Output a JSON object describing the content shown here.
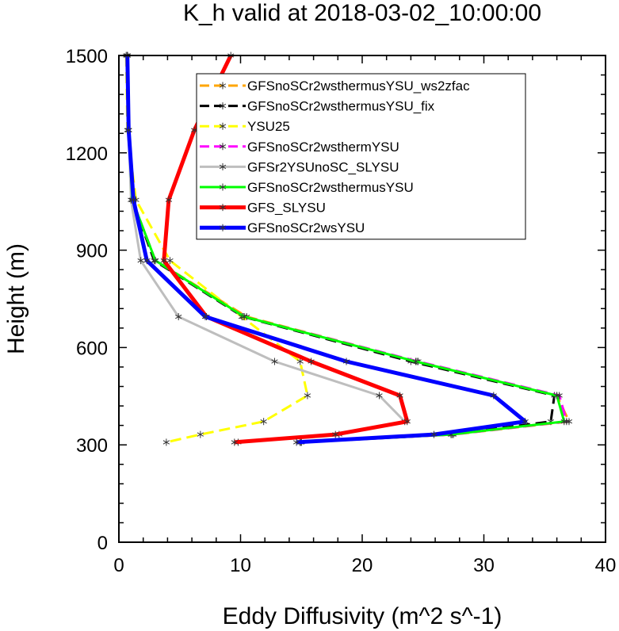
{
  "chart_data": {
    "type": "line",
    "title": "K_h valid at 2018-03-02_10:00:00",
    "xlabel": "Eddy Diffusivity (m^2 s^-1)",
    "ylabel": "Height (m)",
    "xlim": [
      0,
      40
    ],
    "ylim": [
      0,
      1500
    ],
    "xticks": [
      0,
      10,
      20,
      30,
      40
    ],
    "yticks": [
      0,
      300,
      600,
      900,
      1200,
      1500
    ],
    "x_minor_step": 2,
    "y_minor_step": 60,
    "legend_position": "top-right",
    "series": [
      {
        "name": "GFSnoSCr2wsthermusYSU_ws2zfac",
        "color": "#ffa500",
        "dash": "dashed",
        "width": 3,
        "points": [
          [
            0.7,
            1500
          ],
          [
            0.8,
            1270
          ],
          [
            1.1,
            1055
          ],
          [
            3.0,
            868
          ],
          [
            10.5,
            695
          ],
          [
            24.5,
            557
          ],
          [
            36.0,
            452
          ],
          [
            37.0,
            372
          ],
          [
            27.5,
            332
          ],
          [
            15.0,
            308
          ]
        ]
      },
      {
        "name": "GFSnoSCr2wsthermusYSU_fix",
        "color": "#000000",
        "dash": "dashed",
        "width": 3,
        "points": [
          [
            0.7,
            1500
          ],
          [
            0.8,
            1270
          ],
          [
            1.1,
            1055
          ],
          [
            2.9,
            868
          ],
          [
            10.2,
            695
          ],
          [
            24.0,
            557
          ],
          [
            35.8,
            452
          ],
          [
            35.5,
            372
          ],
          [
            27.3,
            332
          ],
          [
            14.9,
            308
          ]
        ]
      },
      {
        "name": "YSU25",
        "color": "#ffff00",
        "dash": "dashed",
        "width": 3,
        "points": [
          [
            0.6,
            1500
          ],
          [
            0.7,
            1270
          ],
          [
            1.4,
            1055
          ],
          [
            4.2,
            868
          ],
          [
            10.1,
            695
          ],
          [
            14.9,
            557
          ],
          [
            15.5,
            452
          ],
          [
            11.9,
            372
          ],
          [
            6.7,
            332
          ],
          [
            3.9,
            308
          ]
        ]
      },
      {
        "name": "GFSnoSCr2wsthermYSU",
        "color": "#ff00ff",
        "dash": "dashed",
        "width": 3,
        "points": [
          [
            0.7,
            1500
          ],
          [
            0.8,
            1270
          ],
          [
            1.1,
            1055
          ],
          [
            3.0,
            868
          ],
          [
            10.3,
            695
          ],
          [
            24.6,
            557
          ],
          [
            36.2,
            452
          ],
          [
            36.8,
            372
          ],
          [
            27.4,
            332
          ],
          [
            15.0,
            308
          ]
        ]
      },
      {
        "name": "GFSr2YSUnoSC_SLYSU",
        "color": "#bebebe",
        "dash": "solid",
        "width": 3,
        "points": [
          [
            0.7,
            1500
          ],
          [
            0.8,
            1270
          ],
          [
            1.0,
            1055
          ],
          [
            1.8,
            868
          ],
          [
            4.9,
            695
          ],
          [
            12.8,
            557
          ],
          [
            21.4,
            452
          ],
          [
            23.5,
            372
          ],
          [
            18.1,
            332
          ],
          [
            9.8,
            308
          ]
        ]
      },
      {
        "name": "GFSnoSCr2wsthermusYSU",
        "color": "#00ff00",
        "dash": "solid",
        "width": 3,
        "points": [
          [
            0.7,
            1500
          ],
          [
            0.8,
            1270
          ],
          [
            1.1,
            1055
          ],
          [
            3.0,
            868
          ],
          [
            10.3,
            695
          ],
          [
            24.4,
            557
          ],
          [
            36.0,
            452
          ],
          [
            36.6,
            372
          ],
          [
            27.3,
            332
          ],
          [
            14.9,
            308
          ]
        ]
      },
      {
        "name": "GFS_SLYSU",
        "color": "#ff0000",
        "dash": "solid",
        "width": 5,
        "points": [
          [
            9.2,
            1500
          ],
          [
            6.2,
            1270
          ],
          [
            4.1,
            1055
          ],
          [
            3.7,
            868
          ],
          [
            7.2,
            695
          ],
          [
            15.8,
            557
          ],
          [
            23.1,
            452
          ],
          [
            23.7,
            372
          ],
          [
            17.8,
            332
          ],
          [
            9.5,
            308
          ]
        ]
      },
      {
        "name": "GFSnoSCr2wsYSU",
        "color": "#0000ff",
        "dash": "solid",
        "width": 5,
        "points": [
          [
            0.7,
            1500
          ],
          [
            0.8,
            1270
          ],
          [
            1.2,
            1055
          ],
          [
            2.3,
            868
          ],
          [
            7.1,
            695
          ],
          [
            18.7,
            557
          ],
          [
            30.8,
            452
          ],
          [
            33.4,
            372
          ],
          [
            25.9,
            332
          ],
          [
            14.6,
            308
          ]
        ]
      }
    ]
  }
}
